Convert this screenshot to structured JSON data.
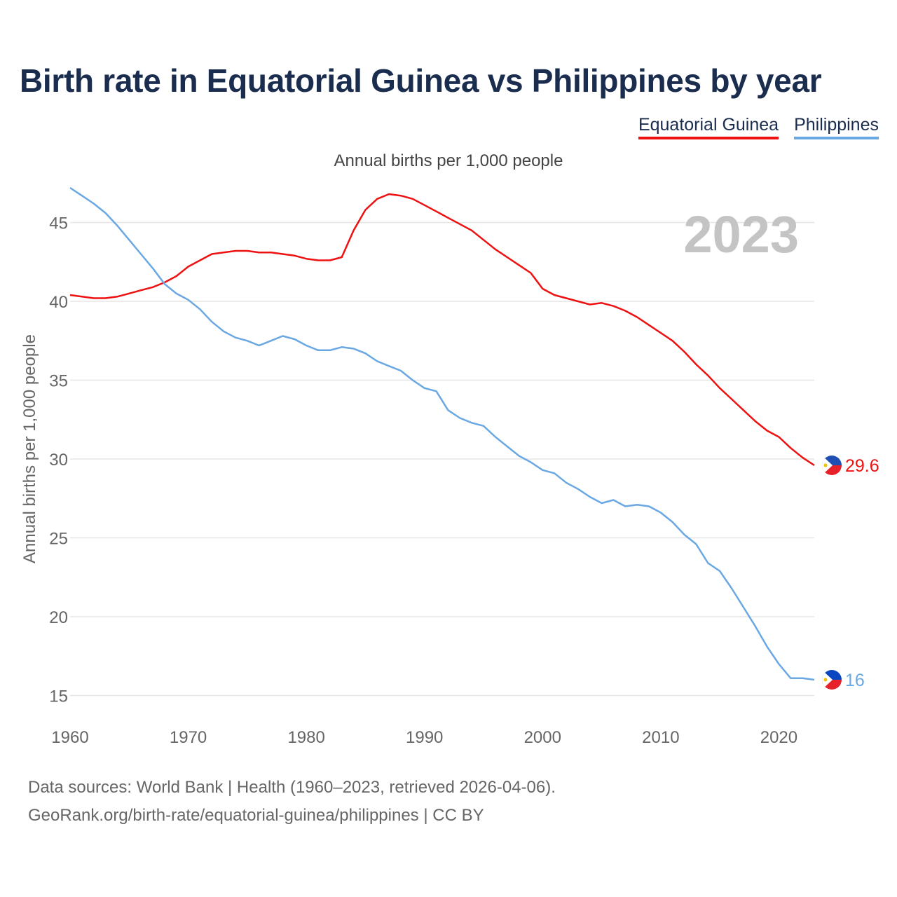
{
  "title": "Birth rate in Equatorial Guinea vs Philippines by year",
  "subtitle": "Annual births per 1,000 people",
  "legend": {
    "items": [
      {
        "label": "Equatorial Guinea",
        "color": "#ee1111"
      },
      {
        "label": "Philippines",
        "color": "#6aa8e3"
      }
    ]
  },
  "footer": {
    "line1": "Data sources: World Bank | Health (1960–2023, retrieved 2026-04-06).",
    "line2": "GeoRank.org/birth-rate/equatorial-guinea/philippines | CC BY"
  },
  "chart_data": {
    "type": "line",
    "title": "Birth rate in Equatorial Guinea vs Philippines by year",
    "xlabel": "",
    "ylabel": "Annual births per 1,000 people",
    "xlim": [
      1960,
      2023
    ],
    "ylim": [
      14,
      48
    ],
    "yticks": [
      15,
      20,
      25,
      30,
      35,
      40,
      45
    ],
    "xticks": [
      1960,
      1970,
      1980,
      1990,
      2000,
      2010,
      2020
    ],
    "year_label": "2023",
    "grid": true,
    "x": [
      1960,
      1961,
      1962,
      1963,
      1964,
      1965,
      1966,
      1967,
      1968,
      1969,
      1970,
      1971,
      1972,
      1973,
      1974,
      1975,
      1976,
      1977,
      1978,
      1979,
      1980,
      1981,
      1982,
      1983,
      1984,
      1985,
      1986,
      1987,
      1988,
      1989,
      1990,
      1991,
      1992,
      1993,
      1994,
      1995,
      1996,
      1997,
      1998,
      1999,
      2000,
      2001,
      2002,
      2003,
      2004,
      2005,
      2006,
      2007,
      2008,
      2009,
      2010,
      2011,
      2012,
      2013,
      2014,
      2015,
      2016,
      2017,
      2018,
      2019,
      2020,
      2021,
      2022,
      2023
    ],
    "series": [
      {
        "name": "Equatorial Guinea",
        "color": "#ee1111",
        "end_label": "29.6",
        "values": [
          40.4,
          40.3,
          40.2,
          40.2,
          40.3,
          40.5,
          40.7,
          40.9,
          41.2,
          41.6,
          42.2,
          42.6,
          43.0,
          43.1,
          43.2,
          43.2,
          43.1,
          43.1,
          43.0,
          42.9,
          42.7,
          42.6,
          42.6,
          42.8,
          44.5,
          45.8,
          46.5,
          46.8,
          46.7,
          46.5,
          46.1,
          45.7,
          45.3,
          44.9,
          44.5,
          43.9,
          43.3,
          42.8,
          42.3,
          41.8,
          40.8,
          40.4,
          40.2,
          40.0,
          39.8,
          39.9,
          39.7,
          39.4,
          39.0,
          38.5,
          38.0,
          37.5,
          36.8,
          36.0,
          35.3,
          34.5,
          33.8,
          33.1,
          32.4,
          31.8,
          31.4,
          30.7,
          30.1,
          29.6
        ]
      },
      {
        "name": "Philippines",
        "color": "#6aa8e3",
        "end_label": "16",
        "values": [
          47.2,
          46.7,
          46.2,
          45.6,
          44.8,
          43.9,
          43.0,
          42.1,
          41.1,
          40.5,
          40.1,
          39.5,
          38.7,
          38.1,
          37.7,
          37.5,
          37.2,
          37.5,
          37.8,
          37.6,
          37.2,
          36.9,
          36.9,
          37.1,
          37.0,
          36.7,
          36.2,
          35.9,
          35.6,
          35.0,
          34.5,
          34.3,
          33.1,
          32.6,
          32.3,
          32.1,
          31.4,
          30.8,
          30.2,
          29.8,
          29.3,
          29.1,
          28.5,
          28.1,
          27.6,
          27.2,
          27.4,
          27.0,
          27.1,
          27.0,
          26.6,
          26.0,
          25.2,
          24.6,
          23.4,
          22.9,
          21.8,
          20.6,
          19.4,
          18.1,
          17.0,
          16.1,
          16.1,
          16.0
        ]
      }
    ]
  }
}
